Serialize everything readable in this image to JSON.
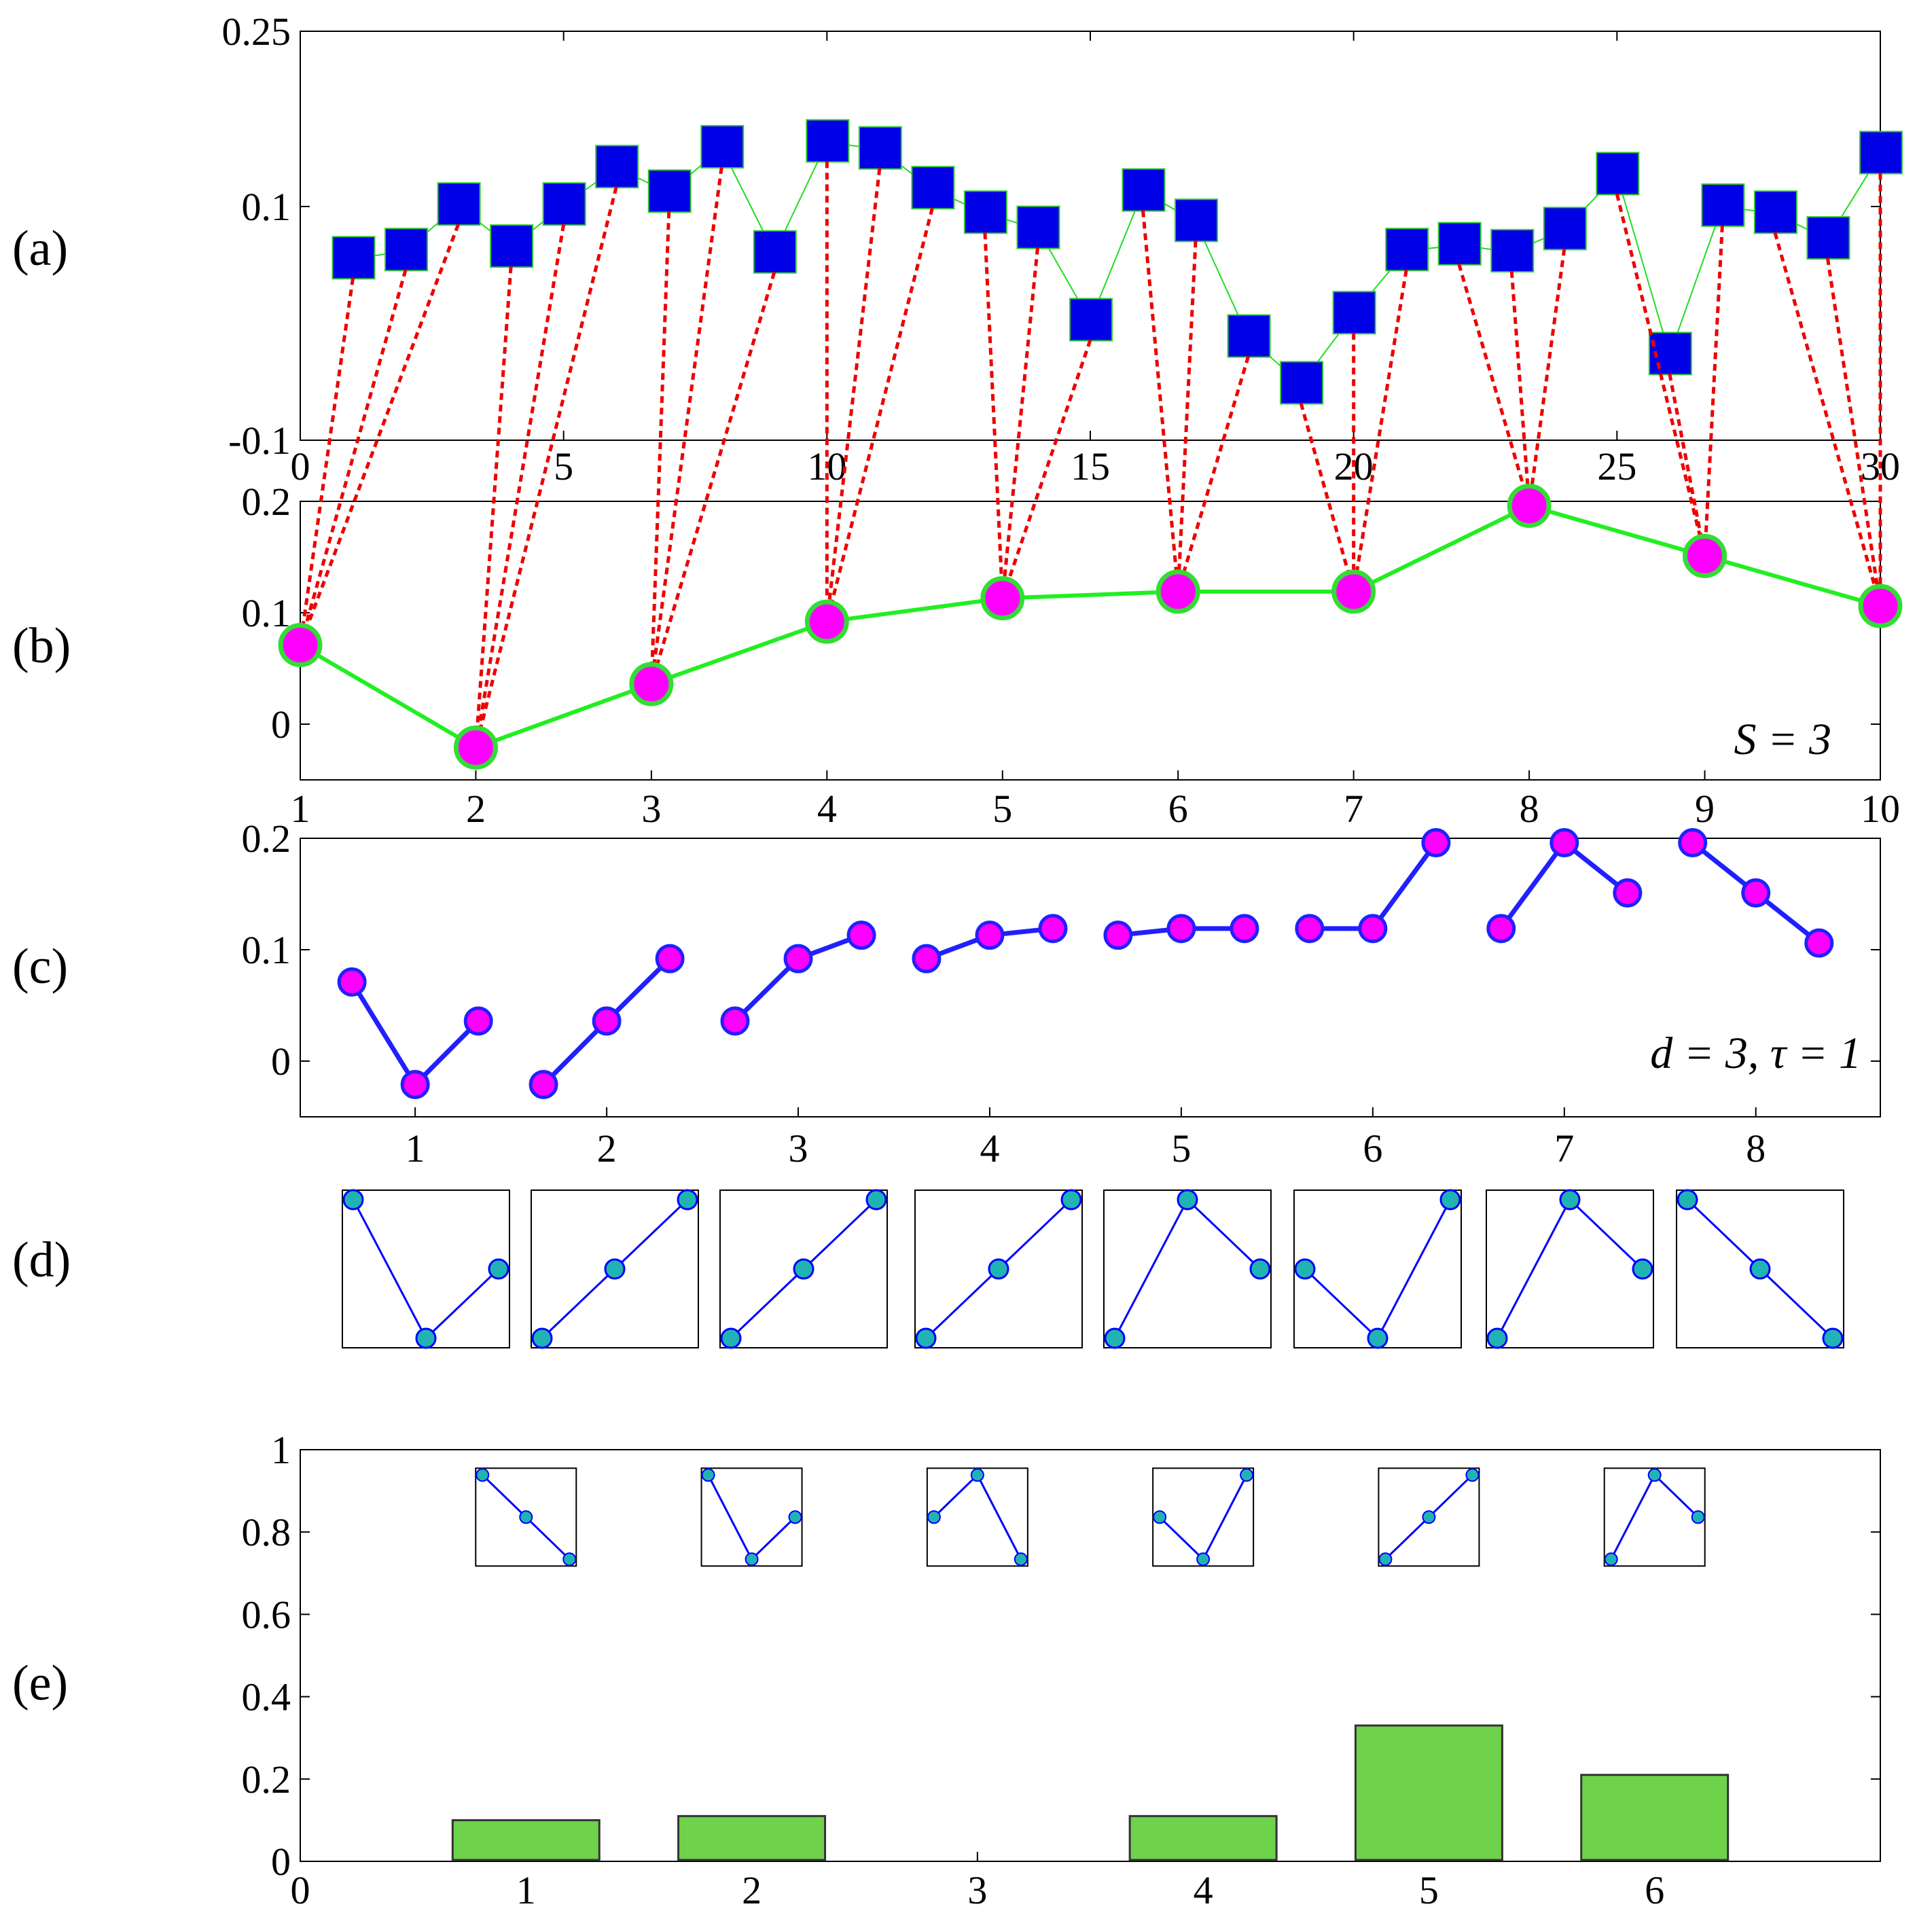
{
  "colors": {
    "square_fill": "#0000e6",
    "square_edge": "#32c832",
    "thin_line": "#22dd22",
    "coarse_line": "#22ee22",
    "dot_fill": "#ff00ff",
    "dot_edge_b": "#33dd33",
    "dot_edge_c": "#2020ff",
    "link_red": "#ee0000",
    "pattern_line": "#0000ff",
    "pattern_dot": "#21b3b3",
    "pattern_dot_edge": "#0000ff",
    "bar_fill": "#6ed24b",
    "axis": "#000000"
  },
  "panel_labels": [
    "(a)",
    "(b)",
    "(c)",
    "(d)",
    "(e)"
  ],
  "chart_data": [
    {
      "id": "a",
      "type": "scatter",
      "title": "",
      "xlim": [
        0,
        30
      ],
      "ylim": [
        -0.1,
        0.25
      ],
      "xticks": [
        0,
        5,
        10,
        15,
        20,
        25,
        30
      ],
      "xtick_labels": [
        "0",
        "5",
        "10",
        "15",
        "20",
        "25",
        "30"
      ],
      "yticks": [
        -0.1,
        0.1,
        0.25
      ],
      "ytick_labels": [
        "-0.1",
        "0.1",
        "0.25"
      ],
      "x": [
        1,
        2,
        3,
        4,
        5,
        6,
        7,
        8,
        9,
        10,
        11,
        12,
        13,
        14,
        15,
        16,
        17,
        18,
        19,
        20,
        21,
        22,
        23,
        24,
        25,
        26,
        27,
        28,
        29,
        30
      ],
      "values": [
        0.055,
        0.062,
        0.101,
        0.065,
        0.101,
        0.133,
        0.112,
        0.15,
        0.06,
        0.155,
        0.149,
        0.115,
        0.094,
        0.081,
        0.002,
        0.113,
        0.087,
        -0.012,
        -0.052,
        0.008,
        0.062,
        0.067,
        0.061,
        0.08,
        0.127,
        -0.027,
        0.1,
        0.094,
        0.072,
        0.145
      ]
    },
    {
      "id": "b",
      "type": "line",
      "annotation": "S = 3",
      "xlim": [
        1,
        10
      ],
      "ylim": [
        -0.05,
        0.2
      ],
      "xticks": [
        1,
        2,
        3,
        4,
        5,
        6,
        7,
        8,
        9,
        10
      ],
      "xtick_labels": [
        "1",
        "2",
        "3",
        "4",
        "5",
        "6",
        "7",
        "8",
        "9",
        "10"
      ],
      "yticks": [
        0,
        0.1,
        0.2
      ],
      "ytick_labels": [
        "0",
        "0.1",
        "0.2"
      ],
      "x": [
        1,
        2,
        3,
        4,
        5,
        6,
        7,
        8,
        9,
        10
      ],
      "values": [
        0.071,
        -0.021,
        0.036,
        0.092,
        0.113,
        0.119,
        0.119,
        0.196,
        0.151,
        0.106
      ]
    },
    {
      "id": "c",
      "type": "line",
      "annotation": "d = 3, τ = 1",
      "xlim": [
        0.4,
        8.65
      ],
      "ylim": [
        -0.05,
        0.2
      ],
      "xticks": [
        1,
        2,
        3,
        4,
        5,
        6,
        7,
        8
      ],
      "xtick_labels": [
        "1",
        "2",
        "3",
        "4",
        "5",
        "6",
        "7",
        "8"
      ],
      "yticks": [
        0,
        0.1,
        0.2
      ],
      "ytick_labels": [
        "0",
        "0.1",
        "0.2"
      ],
      "series": [
        {
          "name": "1",
          "values": [
            0.071,
            -0.021,
            0.036
          ]
        },
        {
          "name": "2",
          "values": [
            -0.021,
            0.036,
            0.092
          ]
        },
        {
          "name": "3",
          "values": [
            0.036,
            0.092,
            0.113
          ]
        },
        {
          "name": "4",
          "values": [
            0.092,
            0.113,
            0.119
          ]
        },
        {
          "name": "5",
          "values": [
            0.113,
            0.119,
            0.119
          ]
        },
        {
          "name": "6",
          "values": [
            0.119,
            0.119,
            0.196
          ]
        },
        {
          "name": "7",
          "values": [
            0.119,
            0.196,
            0.151
          ]
        },
        {
          "name": "8",
          "values": [
            0.196,
            0.151,
            0.106
          ]
        }
      ]
    },
    {
      "id": "d",
      "type": "pattern-sequence",
      "patterns": [
        [
          0,
          2,
          1
        ],
        [
          2,
          1,
          0
        ],
        [
          2,
          1,
          0
        ],
        [
          2,
          1,
          0
        ],
        [
          2,
          0,
          1
        ],
        [
          1,
          2,
          0
        ],
        [
          2,
          0,
          1
        ],
        [
          0,
          1,
          2
        ]
      ]
    },
    {
      "id": "e",
      "type": "bar",
      "xlim": [
        0,
        7
      ],
      "ylim": [
        0,
        1
      ],
      "xticks": [
        0,
        1,
        2,
        3,
        4,
        5,
        6
      ],
      "xtick_labels": [
        "0",
        "1",
        "2",
        "3",
        "4",
        "5",
        "6"
      ],
      "yticks": [
        0,
        0.2,
        0.4,
        0.6,
        0.8,
        1
      ],
      "ytick_labels": [
        "0",
        "0.2",
        "0.4",
        "0.6",
        "0.8",
        "1"
      ],
      "categories": [
        1,
        2,
        3,
        4,
        5,
        6
      ],
      "values": [
        0.1,
        0.11,
        0.0,
        0.11,
        0.33,
        0.21
      ],
      "bar_width": 0.65,
      "inset_patterns": [
        [
          0,
          1,
          2
        ],
        [
          0,
          2,
          1
        ],
        [
          1,
          0,
          2
        ],
        [
          1,
          2,
          0
        ],
        [
          2,
          1,
          0
        ],
        [
          2,
          0,
          1
        ]
      ]
    }
  ]
}
